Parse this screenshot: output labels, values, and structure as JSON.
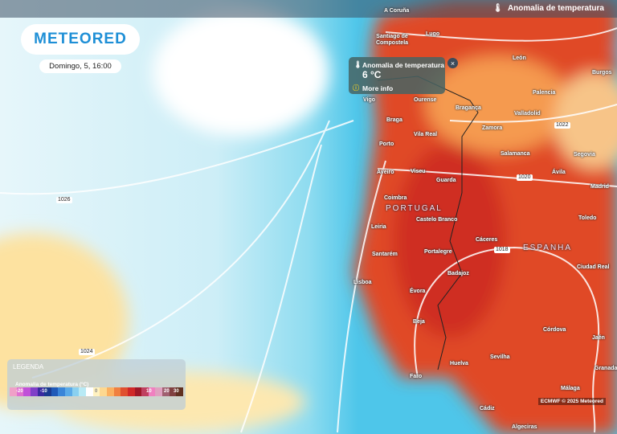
{
  "header": {
    "layer_title": "Anomalia de temperatura",
    "logo": "METEORED",
    "date": "Domingo, 5, 16:00"
  },
  "tooltip": {
    "title": "Anomalia de temperatura",
    "value": "6 °C",
    "more": "More info",
    "close": "×"
  },
  "legend": {
    "title": "LEGENDA",
    "subtitle": "Anomalia de temperatura (°C)",
    "ticks": [
      "-20",
      "-10",
      "0",
      "10",
      "20",
      "30"
    ],
    "colors": [
      "#f0a0c8",
      "#e070d0",
      "#c050d8",
      "#8040c8",
      "#3a2aa0",
      "#1a3a90",
      "#1f5ab8",
      "#3a85d8",
      "#5aaae8",
      "#8ad0f0",
      "#b8eaf5",
      "#ffffff",
      "#fff2c0",
      "#fdd890",
      "#fbb060",
      "#f08040",
      "#e05030",
      "#d02828",
      "#a01828",
      "#c04060",
      "#f080c0",
      "#e0a0c0",
      "#a06070",
      "#804040",
      "#603020"
    ]
  },
  "copyright": "ECMWF © 2025 Meteored",
  "isobars": [
    "1026",
    "1024",
    "1022",
    "1020",
    "1018"
  ],
  "cities": [
    "A Coruña",
    "Santiago de Compostela",
    "Lugo",
    "León",
    "Burgos",
    "Ourense",
    "Vigo",
    "Bragança",
    "Palencia",
    "Braga",
    "Valladolid",
    "Vila Real",
    "Zamora",
    "Porto",
    "Salamanca",
    "Segovia",
    "Aveiro",
    "Viseu",
    "Guarda",
    "Ávila",
    "Madrid",
    "Coimbra",
    "Castelo Branco",
    "Toledo",
    "Leiria",
    "Cáceres",
    "Santarém",
    "Portalegre",
    "Ciudad Real",
    "Badajoz",
    "Lisboa",
    "Évora",
    "Beja",
    "Córdova",
    "Jaén",
    "Sevilha",
    "Huelva",
    "Faro",
    "Granada",
    "Málaga",
    "Cádiz",
    "Algeciras"
  ],
  "countries": [
    "PORTUGAL",
    "ESPANHA"
  ],
  "colors": {
    "accent": "#1e8fd6",
    "warm": "#d83a22",
    "ocean": "#6fd0ec"
  }
}
